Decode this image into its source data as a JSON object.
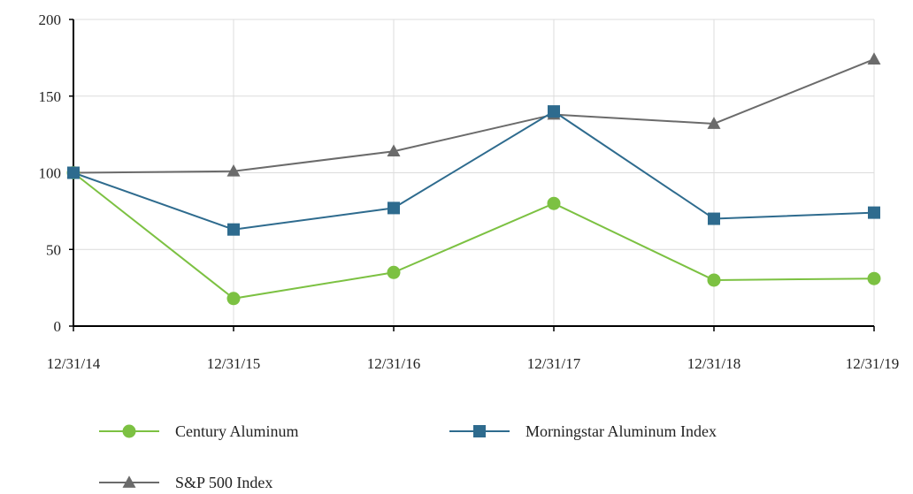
{
  "chart_data": {
    "type": "line",
    "categories": [
      "12/31/14",
      "12/31/15",
      "12/31/16",
      "12/31/17",
      "12/31/18",
      "12/31/19"
    ],
    "ylim": [
      0,
      200
    ],
    "yticks": [
      "0",
      "50",
      "100",
      "150",
      "200"
    ],
    "grid": true,
    "legend_position": "bottom",
    "series": [
      {
        "name": "Century Aluminum",
        "values": [
          100,
          18,
          35,
          80,
          30,
          31
        ],
        "color": "#7cc142",
        "marker": "circle"
      },
      {
        "name": "Morningstar Aluminum Index",
        "values": [
          100,
          63,
          77,
          140,
          70,
          74
        ],
        "color": "#2e6b8e",
        "marker": "square"
      },
      {
        "name": "S&P 500 Index",
        "values": [
          100,
          101,
          114,
          138,
          132,
          174
        ],
        "color": "#6b6b6b",
        "marker": "triangle"
      }
    ]
  }
}
